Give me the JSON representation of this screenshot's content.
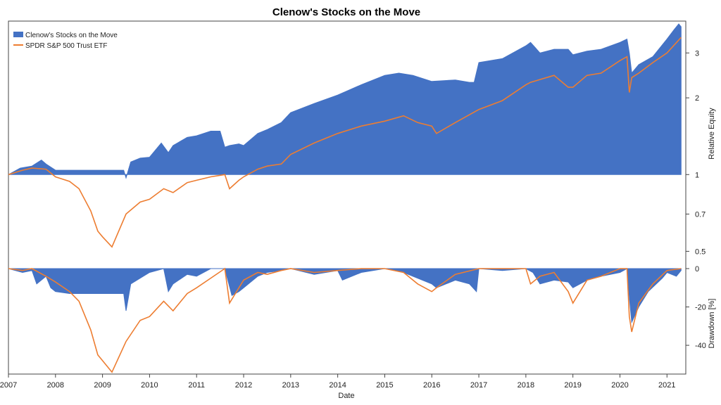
{
  "chart_data": {
    "type": "area",
    "title": "Clenow's Stocks on the Move",
    "xlabel": "Date",
    "x_ticks": [
      "2007",
      "2008",
      "2009",
      "2010",
      "2011",
      "2012",
      "2013",
      "2014",
      "2015",
      "2016",
      "2017",
      "2018",
      "2019",
      "2020",
      "2021"
    ],
    "x_range": [
      2007.0,
      2021.4
    ],
    "legend": {
      "placement": "top-left",
      "entries": [
        "Clenow's Stocks on the Move",
        "SPDR S&P 500 Trust ETF"
      ]
    },
    "colors": {
      "strategy": "#4472c4",
      "benchmark": "#ed7d31"
    },
    "panels": [
      {
        "name": "equity",
        "ylabel": "Relative Equity",
        "scale": "log",
        "y_ticks": [
          0.5,
          0.7,
          1,
          2,
          3
        ],
        "ylim": [
          0.45,
          4.0
        ],
        "series": [
          {
            "name": "Clenow's Stocks on the Move",
            "style": "filled-area",
            "baseline": 1,
            "x": [
              2007.0,
              2007.25,
              2007.5,
              2007.7,
              2007.8,
              2008.0,
              2008.5,
              2009.0,
              2009.45,
              2009.5,
              2009.6,
              2009.8,
              2010.0,
              2010.25,
              2010.4,
              2010.5,
              2010.8,
              2011.0,
              2011.3,
              2011.5,
              2011.6,
              2011.7,
              2011.9,
              2012.0,
              2012.3,
              2012.5,
              2012.8,
              2013.0,
              2013.5,
              2014.0,
              2014.5,
              2015.0,
              2015.3,
              2015.6,
              2016.0,
              2016.5,
              2016.8,
              2016.9,
              2017.0,
              2017.5,
              2018.0,
              2018.1,
              2018.3,
              2018.6,
              2018.9,
              2019.0,
              2019.3,
              2019.6,
              2020.0,
              2020.15,
              2020.2,
              2020.25,
              2020.4,
              2020.7,
              2021.0,
              2021.15,
              2021.25,
              2021.3
            ],
            "values": [
              1.0,
              1.06,
              1.08,
              1.14,
              1.1,
              1.04,
              1.04,
              1.04,
              1.04,
              0.97,
              1.12,
              1.16,
              1.17,
              1.33,
              1.22,
              1.3,
              1.4,
              1.42,
              1.48,
              1.48,
              1.28,
              1.3,
              1.32,
              1.3,
              1.45,
              1.5,
              1.6,
              1.75,
              1.9,
              2.05,
              2.25,
              2.45,
              2.5,
              2.45,
              2.32,
              2.35,
              2.3,
              2.3,
              2.75,
              2.85,
              3.2,
              3.3,
              3.0,
              3.1,
              3.1,
              2.95,
              3.05,
              3.1,
              3.3,
              3.4,
              3.0,
              2.5,
              2.7,
              2.9,
              3.4,
              3.7,
              3.9,
              3.8
            ]
          },
          {
            "name": "SPDR S&P 500 Trust ETF",
            "style": "line",
            "x": [
              2007.0,
              2007.3,
              2007.5,
              2007.8,
              2008.0,
              2008.3,
              2008.5,
              2008.75,
              2008.9,
              2009.0,
              2009.2,
              2009.5,
              2009.8,
              2010.0,
              2010.3,
              2010.5,
              2010.8,
              2011.0,
              2011.3,
              2011.6,
              2011.7,
              2011.9,
              2012.0,
              2012.3,
              2012.5,
              2012.8,
              2013.0,
              2013.5,
              2014.0,
              2014.5,
              2015.0,
              2015.4,
              2015.7,
              2016.0,
              2016.1,
              2016.5,
              2017.0,
              2017.5,
              2018.0,
              2018.1,
              2018.6,
              2018.9,
              2019.0,
              2019.3,
              2019.6,
              2020.0,
              2020.15,
              2020.2,
              2020.25,
              2020.4,
              2020.7,
              2021.0,
              2021.3
            ],
            "values": [
              1.0,
              1.04,
              1.06,
              1.05,
              0.98,
              0.94,
              0.88,
              0.72,
              0.6,
              0.57,
              0.52,
              0.7,
              0.78,
              0.8,
              0.88,
              0.85,
              0.93,
              0.95,
              0.98,
              1.0,
              0.88,
              0.95,
              0.98,
              1.05,
              1.08,
              1.1,
              1.2,
              1.33,
              1.45,
              1.55,
              1.62,
              1.7,
              1.6,
              1.55,
              1.45,
              1.6,
              1.8,
              1.95,
              2.25,
              2.3,
              2.45,
              2.2,
              2.2,
              2.45,
              2.5,
              2.8,
              2.9,
              2.1,
              2.4,
              2.5,
              2.75,
              3.0,
              3.45
            ]
          }
        ]
      },
      {
        "name": "drawdown",
        "ylabel": "Drawdown [%]",
        "scale": "linear",
        "y_ticks": [
          0,
          -20,
          -40
        ],
        "ylim": [
          -55,
          0
        ],
        "series": [
          {
            "name": "Clenow's Stocks on the Move",
            "style": "filled-area",
            "x": [
              2007.0,
              2007.3,
              2007.5,
              2007.6,
              2007.8,
              2007.9,
              2008.0,
              2008.3,
              2008.5,
              2009.0,
              2009.45,
              2009.5,
              2009.55,
              2009.6,
              2009.8,
              2010.0,
              2010.3,
              2010.4,
              2010.5,
              2010.8,
              2011.0,
              2011.3,
              2011.6,
              2011.75,
              2011.9,
              2012.0,
              2012.3,
              2012.5,
              2012.8,
              2013.0,
              2013.5,
              2014.0,
              2014.1,
              2014.5,
              2015.0,
              2015.4,
              2015.7,
              2016.0,
              2016.1,
              2016.5,
              2016.8,
              2016.95,
              2017.0,
              2017.5,
              2018.0,
              2018.15,
              2018.3,
              2018.6,
              2018.9,
              2019.0,
              2019.3,
              2019.6,
              2020.0,
              2020.15,
              2020.2,
              2020.25,
              2020.4,
              2020.6,
              2020.9,
              2021.0,
              2021.2,
              2021.3
            ],
            "values": [
              0,
              -2,
              -1,
              -8,
              -4,
              -10,
              -12,
              -13,
              -13,
              -13,
              -13,
              -22,
              -15,
              -8,
              -5,
              -2,
              0,
              -12,
              -8,
              -3,
              -4,
              0,
              0,
              -14,
              -12,
              -10,
              -4,
              -2,
              -1,
              0,
              -3,
              -1,
              -6,
              -2,
              0,
              -2,
              -5,
              -8,
              -10,
              -6,
              -8,
              -12,
              0,
              -1,
              0,
              -2,
              -8,
              -6,
              -7,
              -10,
              -6,
              -4,
              -2,
              0,
              -15,
              -28,
              -20,
              -12,
              -5,
              -2,
              -4,
              -1
            ]
          },
          {
            "name": "SPDR S&P 500 Trust ETF",
            "style": "line",
            "x": [
              2007.0,
              2007.3,
              2007.5,
              2007.8,
              2008.0,
              2008.3,
              2008.5,
              2008.75,
              2008.9,
              2009.0,
              2009.2,
              2009.5,
              2009.8,
              2010.0,
              2010.3,
              2010.5,
              2010.8,
              2011.0,
              2011.3,
              2011.6,
              2011.7,
              2011.9,
              2012.0,
              2012.3,
              2012.5,
              2012.8,
              2013.0,
              2013.5,
              2014.0,
              2014.5,
              2015.0,
              2015.4,
              2015.7,
              2016.0,
              2016.1,
              2016.5,
              2017.0,
              2017.5,
              2018.0,
              2018.1,
              2018.3,
              2018.6,
              2018.9,
              2019.0,
              2019.3,
              2019.6,
              2020.0,
              2020.15,
              2020.2,
              2020.25,
              2020.4,
              2020.7,
              2021.0,
              2021.3
            ],
            "values": [
              0,
              -1,
              0,
              -4,
              -7,
              -12,
              -17,
              -32,
              -45,
              -48,
              -54,
              -38,
              -27,
              -25,
              -17,
              -22,
              -13,
              -10,
              -5,
              0,
              -18,
              -10,
              -6,
              -2,
              -3,
              -1,
              0,
              -2,
              -1,
              0,
              0,
              -2,
              -8,
              -12,
              -10,
              -3,
              0,
              0,
              0,
              -8,
              -4,
              -2,
              -12,
              -18,
              -6,
              -4,
              0,
              0,
              -25,
              -33,
              -18,
              -8,
              -1,
              0
            ]
          }
        ]
      }
    ]
  }
}
